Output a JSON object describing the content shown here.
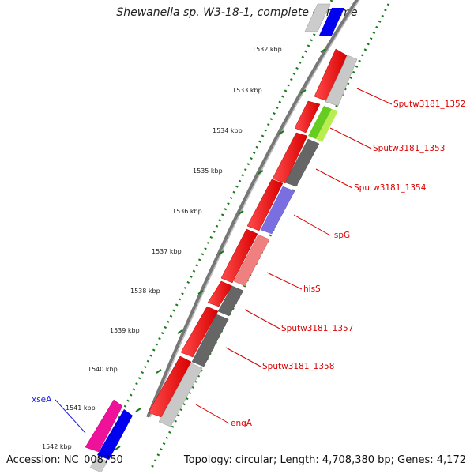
{
  "title": "Shewanella sp. W3-18-1, complete genome",
  "footer": {
    "accession": "Accession: NC_008750",
    "stats": "Topology: circular; Length: 4,708,380 bp; Genes: 4,172"
  },
  "ticks": [
    "1532 kbp",
    "1533 kbp",
    "1534 kbp",
    "1535 kbp",
    "1536 kbp",
    "1537 kbp",
    "1538 kbp",
    "1539 kbp",
    "1540 kbp",
    "1541 kbp",
    "1542 kbp"
  ],
  "gene_labels": [
    {
      "text": "Sputw3181_1352",
      "color": "#dd0000"
    },
    {
      "text": "Sputw3181_1353",
      "color": "#dd0000"
    },
    {
      "text": "Sputw3181_1354",
      "color": "#dd0000"
    },
    {
      "text": "ispG",
      "color": "#dd0000"
    },
    {
      "text": "hisS",
      "color": "#dd0000"
    },
    {
      "text": "Sputw3181_1357",
      "color": "#dd0000"
    },
    {
      "text": "Sputw3181_1358",
      "color": "#dd0000"
    },
    {
      "text": "engA",
      "color": "#dd0000"
    },
    {
      "text": "xseA",
      "color": "#1a1adf"
    }
  ],
  "colors": {
    "forward_strand": "#ff0000",
    "backbone": "#777777",
    "dotted_ring": "#1a7a1a",
    "gray_gene": "#c8c8c8",
    "dark_gray_gene": "#666666",
    "green_gene": "#66cc22",
    "purple_gene": "#7a6fe0",
    "pink_gene": "#f08080",
    "magenta_gene": "#ee1199",
    "blue_gene": "#0000ee"
  }
}
